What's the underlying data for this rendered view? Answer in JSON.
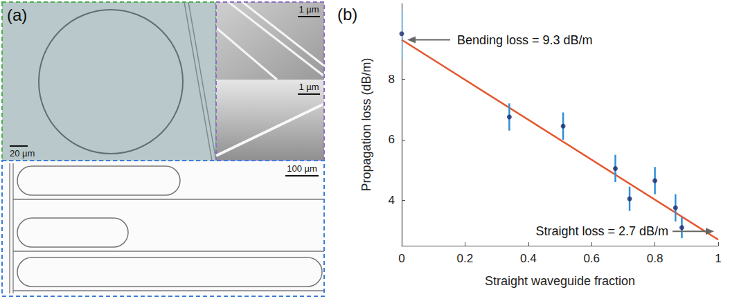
{
  "figure": {
    "panel_a": {
      "label": "(a)",
      "images": [
        {
          "scale_bar": "20 µm"
        },
        {
          "scale_bar": "1 µm"
        },
        {
          "scale_bar": "1 µm"
        },
        {
          "scale_bar": "100 µm"
        }
      ]
    }
  },
  "chart_data": {
    "type": "scatter",
    "panel_label": "(b)",
    "x_label": "Straight waveguide fraction",
    "y_label": "Propagation loss (dB/m)",
    "xlim": [
      0,
      1
    ],
    "xticks": [
      0,
      0.2,
      0.4,
      0.6,
      0.8,
      1
    ],
    "ylim": [
      2.5,
      10.5
    ],
    "yticks": [
      4,
      6,
      8
    ],
    "series": [
      {
        "type": "scatter",
        "color": "#1c2a6e",
        "marker": "circle",
        "x": [
          0,
          0.34,
          0.51,
          0.675,
          0.72,
          0.8,
          0.865,
          0.885
        ],
        "values": [
          9.5,
          6.75,
          6.45,
          5.05,
          4.05,
          4.65,
          3.75,
          3.1
        ],
        "errors": [
          0.8,
          0.45,
          0.45,
          0.45,
          0.4,
          0.45,
          0.45,
          0.35
        ]
      },
      {
        "type": "line",
        "color": "#e4572e",
        "line_style": "solid",
        "x": [
          0,
          1
        ],
        "values": [
          9.3,
          2.7
        ]
      }
    ],
    "annotations": [
      {
        "text": "Bending loss = 9.3 dB/m",
        "x": 0,
        "y": 9.3
      },
      {
        "text": "Straight loss = 2.7 dB/m",
        "x": 1,
        "y": 2.7
      }
    ]
  }
}
